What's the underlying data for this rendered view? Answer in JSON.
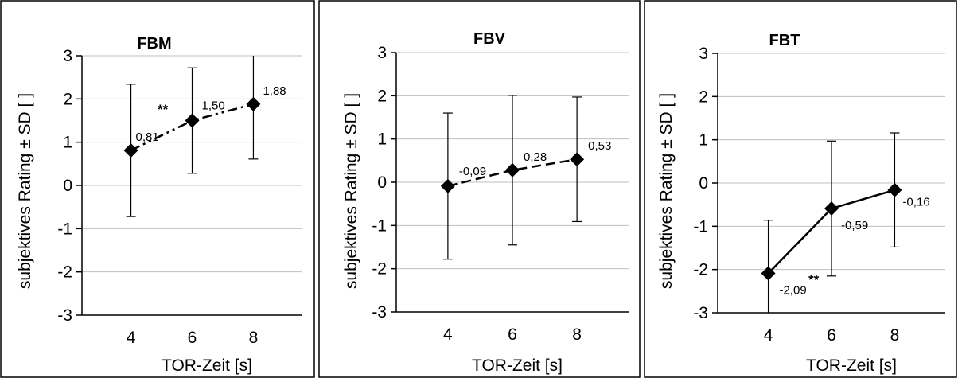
{
  "chart_data": [
    {
      "type": "line",
      "title": "FBM",
      "xlabel": "TOR-Zeit [s]",
      "ylabel": "subjektives Rating ± SD [ ]",
      "x": [
        4,
        6,
        8
      ],
      "values": [
        0.81,
        1.5,
        1.88
      ],
      "sd": [
        1.53,
        1.22,
        1.27
      ],
      "data_labels": [
        "0,81",
        "1,50",
        "1,88"
      ],
      "ylim": [
        -3,
        3
      ],
      "yticks": [
        "-3",
        "-2",
        "-1",
        "0",
        "1",
        "2",
        "3"
      ],
      "xticks": [
        "4",
        "6",
        "8"
      ],
      "line_style": "dash-dot-dot",
      "significance": "**",
      "grid": true
    },
    {
      "type": "line",
      "title": "FBV",
      "xlabel": "TOR-Zeit [s]",
      "ylabel": "subjektives Rating ± SD [ ]",
      "x": [
        4,
        6,
        8
      ],
      "values": [
        -0.09,
        0.28,
        0.53
      ],
      "sd": [
        1.69,
        1.73,
        1.44
      ],
      "data_labels": [
        "-0,09",
        "0,28",
        "0,53"
      ],
      "ylim": [
        -3,
        3
      ],
      "yticks": [
        "-3",
        "-2",
        "-1",
        "0",
        "1",
        "2",
        "3"
      ],
      "xticks": [
        "4",
        "6",
        "8"
      ],
      "line_style": "dashed",
      "significance": "",
      "grid": true
    },
    {
      "type": "line",
      "title": "FBT",
      "xlabel": "TOR-Zeit [s]",
      "ylabel": "subjektives Rating ± SD [ ]",
      "x": [
        4,
        6,
        8
      ],
      "values": [
        -2.09,
        -0.59,
        -0.16
      ],
      "sd": [
        1.23,
        1.56,
        1.32
      ],
      "data_labels": [
        "-2,09",
        "-0,59",
        "-0,16"
      ],
      "ylim": [
        -3,
        3
      ],
      "yticks": [
        "-3",
        "-2",
        "-1",
        "0",
        "1",
        "2",
        "3"
      ],
      "xticks": [
        "4",
        "6",
        "8"
      ],
      "line_style": "solid",
      "significance": "**",
      "grid": true
    }
  ]
}
